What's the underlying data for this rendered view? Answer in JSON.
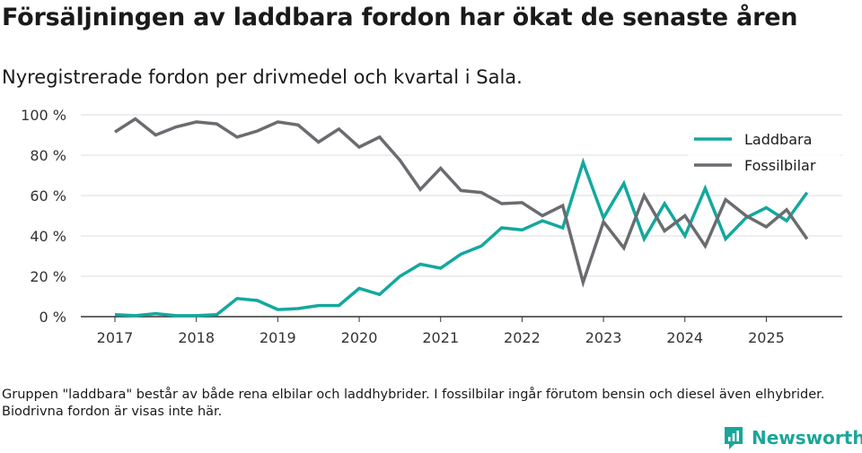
{
  "title": "Försäljningen av laddbara fordon har ökat de senaste åren",
  "subtitle": "Nyregistrerade fordon per drivmedel och kvartal i Sala.",
  "footnote": "Gruppen \"laddbara\" består av både rena elbilar och laddhybrider. I fossilbilar ingår förutom bensin och diesel även elhybrider. Biodrivna fordon är visas inte här.",
  "brand": "Newsworthy",
  "chart_data": {
    "type": "line",
    "x": [
      "2017Q1",
      "2017Q2",
      "2017Q3",
      "2017Q4",
      "2018Q1",
      "2018Q2",
      "2018Q3",
      "2018Q4",
      "2019Q1",
      "2019Q2",
      "2019Q3",
      "2019Q4",
      "2020Q1",
      "2020Q2",
      "2020Q3",
      "2020Q4",
      "2021Q1",
      "2021Q2",
      "2021Q3",
      "2021Q4",
      "2022Q1",
      "2022Q2",
      "2022Q3",
      "2022Q4",
      "2023Q1",
      "2023Q2",
      "2023Q3",
      "2023Q4",
      "2024Q1",
      "2024Q2",
      "2024Q3",
      "2024Q4",
      "2025Q1",
      "2025Q2",
      "2025Q3"
    ],
    "series": [
      {
        "name": "Laddbara",
        "color": "#13a89e",
        "values": [
          1,
          0.5,
          1.5,
          0.5,
          0.5,
          1,
          9,
          8,
          3.5,
          4,
          5.5,
          5.5,
          14,
          11,
          20,
          26,
          24,
          31,
          35,
          44,
          43,
          47.5,
          44,
          76.5,
          49,
          66,
          38.5,
          56,
          40,
          63.5,
          38.5,
          49,
          54,
          47.5,
          61.5
        ]
      },
      {
        "name": "Fossilbilar",
        "color": "#6b6b70",
        "values": [
          91.5,
          98,
          90,
          94,
          96.5,
          95.5,
          89,
          92,
          96.5,
          95,
          86.5,
          93,
          84,
          89,
          77.5,
          63,
          73.5,
          62.5,
          61.5,
          56,
          56.5,
          50,
          55,
          17,
          47,
          34,
          60,
          42.5,
          50,
          35,
          58,
          50,
          44.5,
          53,
          38.5
        ]
      }
    ],
    "ylim": [
      0,
      100
    ],
    "yticks": [
      "0 %",
      "20 %",
      "40 %",
      "60 %",
      "80 %",
      "100 %"
    ],
    "xticks": [
      "2017",
      "2018",
      "2019",
      "2020",
      "2021",
      "2022",
      "2023",
      "2024",
      "2025"
    ],
    "legend_position": "top-right"
  }
}
